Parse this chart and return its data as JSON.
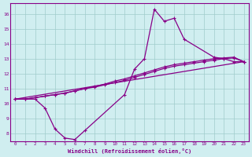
{
  "title": "",
  "xlabel": "Windchill (Refroidissement éolien,°C)",
  "background_color": "#d0eef0",
  "grid_color": "#a0cccc",
  "line_color": "#880088",
  "xlim": [
    -0.5,
    23.5
  ],
  "ylim": [
    7.5,
    16.7
  ],
  "xticks": [
    0,
    1,
    2,
    3,
    4,
    5,
    6,
    7,
    8,
    9,
    10,
    11,
    12,
    13,
    14,
    15,
    16,
    17,
    18,
    19,
    20,
    21,
    22,
    23
  ],
  "yticks": [
    8,
    9,
    10,
    11,
    12,
    13,
    14,
    15,
    16
  ],
  "line1_x": [
    0,
    1,
    2,
    3,
    4,
    5,
    6,
    7,
    11,
    12,
    13,
    14,
    15,
    16,
    17,
    20,
    21,
    22,
    23
  ],
  "line1_y": [
    10.3,
    10.3,
    10.3,
    9.7,
    8.3,
    7.7,
    7.6,
    8.2,
    10.6,
    12.3,
    13.0,
    16.3,
    15.5,
    15.7,
    14.3,
    13.1,
    13.0,
    12.8,
    12.8
  ],
  "line2_x": [
    0,
    1,
    3,
    4,
    5,
    6,
    7,
    8,
    9,
    10,
    11,
    12,
    13,
    14,
    15,
    16,
    17,
    18,
    19,
    20,
    21,
    22,
    23
  ],
  "line2_y": [
    10.3,
    10.3,
    10.5,
    10.6,
    10.7,
    10.85,
    11.0,
    11.1,
    11.25,
    11.4,
    11.55,
    11.75,
    11.95,
    12.15,
    12.35,
    12.5,
    12.6,
    12.7,
    12.8,
    12.9,
    13.0,
    13.05,
    12.8
  ],
  "line3_x": [
    0,
    23
  ],
  "line3_y": [
    10.3,
    12.8
  ],
  "line4_x": [
    0,
    1,
    2,
    3,
    4,
    5,
    6,
    7,
    8,
    9,
    10,
    11,
    12,
    13,
    14,
    15,
    16,
    17,
    18,
    19,
    20,
    21,
    22,
    23
  ],
  "line4_y": [
    10.3,
    10.3,
    10.4,
    10.5,
    10.6,
    10.7,
    10.85,
    11.0,
    11.15,
    11.3,
    11.5,
    11.65,
    11.85,
    12.05,
    12.25,
    12.45,
    12.6,
    12.7,
    12.8,
    12.9,
    13.0,
    13.05,
    13.1,
    12.8
  ]
}
